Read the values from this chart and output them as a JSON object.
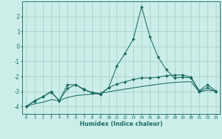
{
  "xlabel": "Humidex (Indice chaleur)",
  "background_color": "#cceee8",
  "grid_color": "#aad4ce",
  "line_color": "#1a6e64",
  "x": [
    0,
    1,
    2,
    3,
    4,
    5,
    6,
    7,
    8,
    9,
    10,
    11,
    12,
    13,
    14,
    15,
    16,
    17,
    18,
    19,
    20,
    21,
    22,
    23
  ],
  "series1": [
    -4.0,
    -3.65,
    -3.35,
    -3.05,
    -3.6,
    -2.55,
    -2.55,
    -2.85,
    -3.1,
    -3.2,
    -2.75,
    -1.3,
    -0.45,
    0.5,
    2.65,
    0.65,
    -0.7,
    -1.55,
    -2.1,
    -2.05,
    -2.1,
    -3.0,
    -2.75,
    -3.0
  ],
  "series2": [
    -4.0,
    -3.6,
    -3.35,
    -3.0,
    -3.6,
    -2.8,
    -2.55,
    -2.9,
    -3.05,
    -3.15,
    -2.75,
    -2.5,
    -2.35,
    -2.2,
    -2.1,
    -2.1,
    -2.05,
    -1.95,
    -1.9,
    -1.9,
    -2.05,
    -2.95,
    -2.55,
    -2.95
  ],
  "series3": [
    -4.0,
    -3.82,
    -3.72,
    -3.55,
    -3.6,
    -3.4,
    -3.28,
    -3.22,
    -3.17,
    -3.12,
    -3.02,
    -2.93,
    -2.84,
    -2.76,
    -2.67,
    -2.6,
    -2.52,
    -2.45,
    -2.4,
    -2.37,
    -2.35,
    -3.02,
    -2.92,
    -2.97
  ],
  "ylim": [
    -4.5,
    3.0
  ],
  "yticks": [
    -4,
    -3,
    -2,
    -1,
    0,
    1,
    2
  ],
  "xlim": [
    -0.5,
    23.5
  ],
  "markersize": 2.5
}
